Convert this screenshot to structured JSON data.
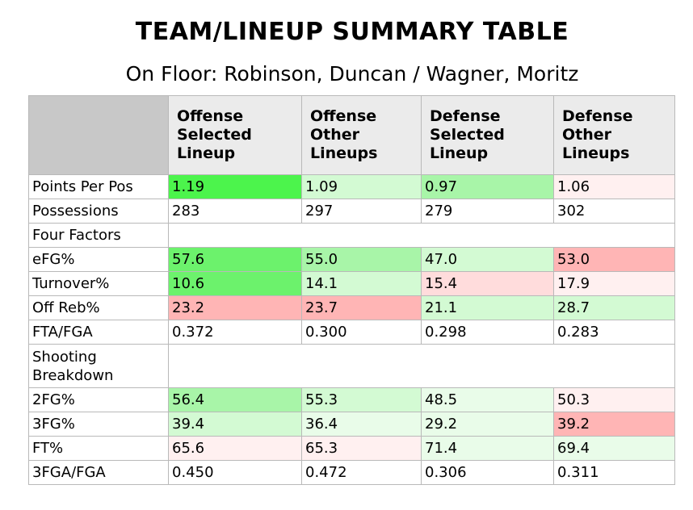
{
  "title": "TEAM/LINEUP SUMMARY TABLE",
  "subtitle": "On Floor: Robinson, Duncan / Wagner, Moritz",
  "columns": [
    "",
    "Offense Selected Lineup",
    "Offense Other Lineups",
    "Defense Selected Lineup",
    "Defense Other Lineups"
  ],
  "rows": [
    {
      "label": "Points Per Pos",
      "values": [
        "1.19",
        "1.09",
        "0.97",
        "1.06"
      ],
      "heat": [
        "g4",
        "g1",
        "g2",
        "r0"
      ]
    },
    {
      "label": "Possessions",
      "values": [
        "283",
        "297",
        "279",
        "302"
      ],
      "heat": [
        "n",
        "n",
        "n",
        "n"
      ]
    },
    {
      "label": "Four Factors",
      "section": true
    },
    {
      "label": "eFG%",
      "values": [
        "57.6",
        "55.0",
        "47.0",
        "53.0"
      ],
      "heat": [
        "g3",
        "g2",
        "g1",
        "r3"
      ]
    },
    {
      "label": "Turnover%",
      "values": [
        "10.6",
        "14.1",
        "15.4",
        "17.9"
      ],
      "heat": [
        "g3",
        "g1",
        "r1",
        "r0"
      ]
    },
    {
      "label": "Off Reb%",
      "values": [
        "23.2",
        "23.7",
        "21.1",
        "28.7"
      ],
      "heat": [
        "r3",
        "r3",
        "g1",
        "g1"
      ]
    },
    {
      "label": "FTA/FGA",
      "values": [
        "0.372",
        "0.300",
        "0.298",
        "0.283"
      ],
      "heat": [
        "n",
        "n",
        "n",
        "n"
      ]
    },
    {
      "label": "Shooting Breakdown",
      "section": true,
      "tall": true
    },
    {
      "label": "2FG%",
      "values": [
        "56.4",
        "55.3",
        "48.5",
        "50.3"
      ],
      "heat": [
        "g2",
        "g1",
        "g0",
        "r0"
      ]
    },
    {
      "label": "3FG%",
      "values": [
        "39.4",
        "36.4",
        "29.2",
        "39.2"
      ],
      "heat": [
        "g1",
        "g0",
        "g0",
        "r3"
      ]
    },
    {
      "label": "FT%",
      "values": [
        "65.6",
        "65.3",
        "71.4",
        "69.4"
      ],
      "heat": [
        "r0",
        "r0",
        "g0",
        "g0"
      ]
    },
    {
      "label": "3FGA/FGA",
      "values": [
        "0.450",
        "0.472",
        "0.306",
        "0.311"
      ],
      "heat": [
        "n",
        "n",
        "n",
        "n"
      ]
    }
  ],
  "colors": {
    "header_gray": "#c0c0c0",
    "strong_green": "#4cf44c",
    "light_green": "#d3fad3",
    "light_red": "#ffdcdc",
    "strong_red": "#ffb5b5",
    "border": "#b9b9b9"
  }
}
